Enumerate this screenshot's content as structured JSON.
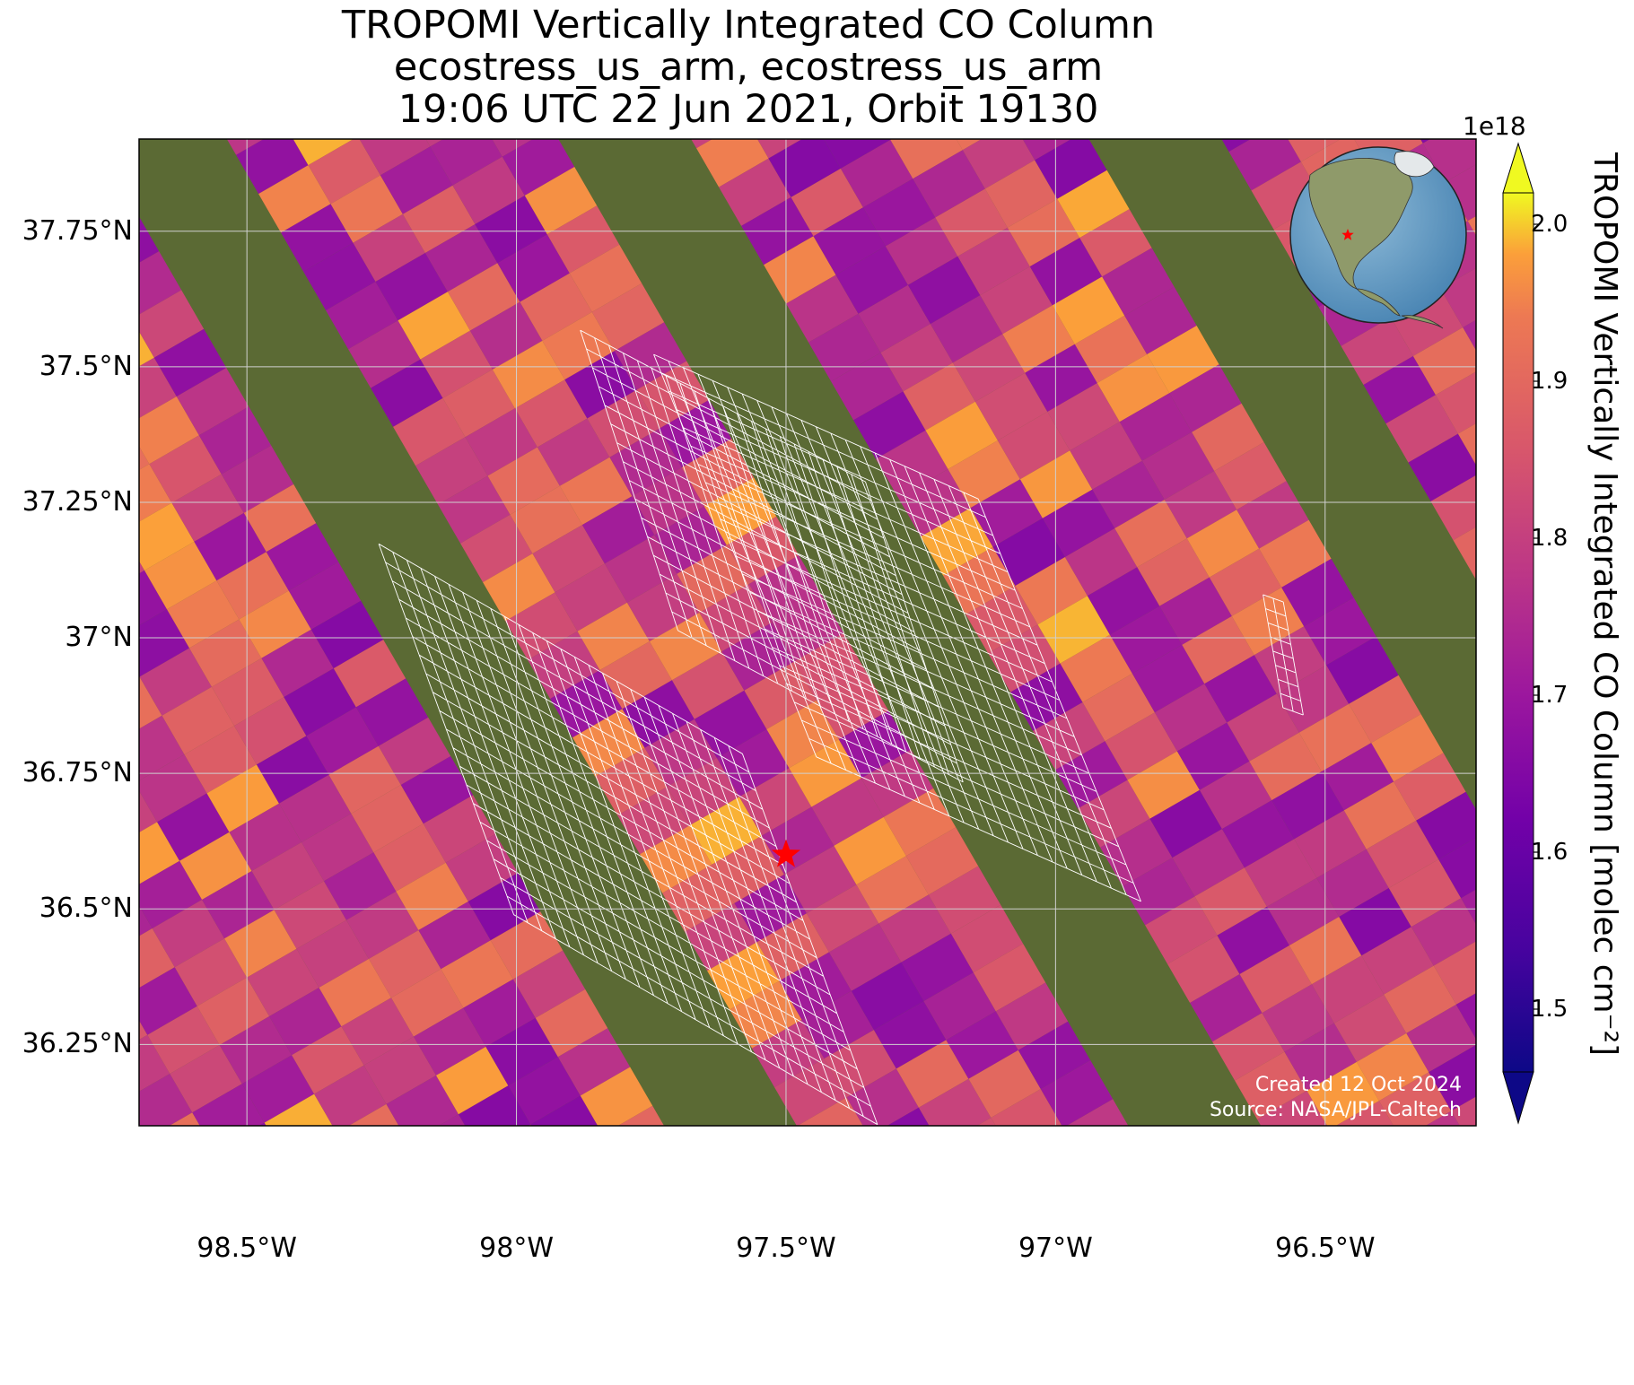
{
  "title": {
    "line1": "TROPOMI Vertically Integrated CO Column",
    "line2": "ecostress_us_arm, ecostress_us_arm",
    "line3": "19:06 UTC 22 Jun 2021, Orbit 19130"
  },
  "map": {
    "extent": {
      "lon": [
        -98.7,
        -96.22
      ],
      "lat": [
        36.1,
        37.92
      ]
    },
    "latitude_labels": [
      "37.75°N",
      "37.5°N",
      "37.25°N",
      "37°N",
      "36.75°N",
      "36.5°N",
      "36.25°N"
    ],
    "latitude_values": [
      37.75,
      37.5,
      37.25,
      37.0,
      36.75,
      36.5,
      36.25
    ],
    "longitude_labels": [
      "98.5°W",
      "98°W",
      "97.5°W",
      "97°W",
      "96.5°W"
    ],
    "longitude_values": [
      -98.5,
      -98.0,
      -97.5,
      -97.0,
      -96.5
    ],
    "site_marker": {
      "name": "ecostress_us_arm",
      "lat": 36.6,
      "lon": -97.5,
      "color": "#ff0000"
    },
    "inset_globe": {
      "marker_color": "#ff0000"
    },
    "gridlines": true
  },
  "colorbar": {
    "label": "TROPOMI Vertically Integrated CO Column [molec cm⁻²]",
    "exponent": "1e18",
    "colormap": "plasma",
    "ticks": [
      "2.0",
      "1.9",
      "1.8",
      "1.7",
      "1.6",
      "1.5"
    ],
    "tick_values": [
      2.0,
      1.9,
      1.8,
      1.7,
      1.6,
      1.5
    ],
    "range": [
      1.46,
      2.02
    ],
    "extend": "both"
  },
  "credits": {
    "created": "Created 12 Oct 2024",
    "source": "Source: NASA/JPL-Caltech"
  }
}
